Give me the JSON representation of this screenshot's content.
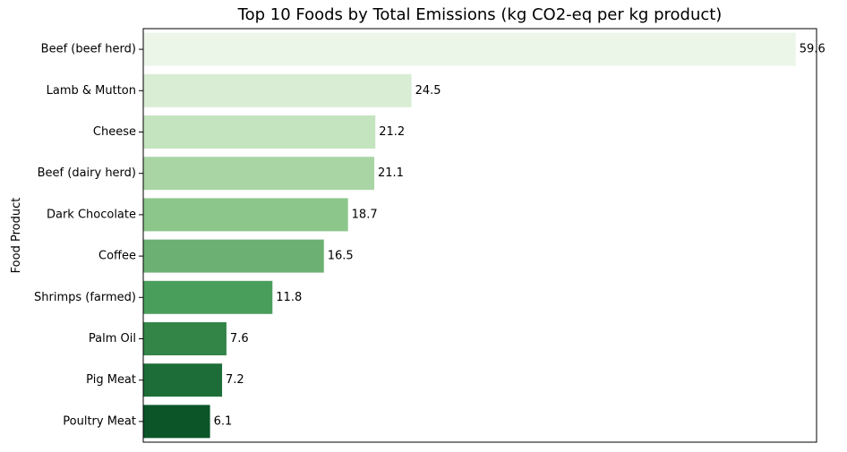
{
  "chart_data": {
    "type": "bar",
    "orientation": "horizontal",
    "title": "Top 10 Foods by Total Emissions (kg CO2-eq per kg product)",
    "xlabel": "",
    "ylabel": "Food Product",
    "xlim": [
      0,
      61.5
    ],
    "grid": false,
    "x_tick_labels_shown": false,
    "categories": [
      "Beef (beef herd)",
      "Lamb & Mutton",
      "Cheese",
      "Beef (dairy herd)",
      "Dark Chocolate",
      "Coffee",
      "Shrimps (farmed)",
      "Palm Oil",
      "Pig Meat",
      "Poultry Meat"
    ],
    "values": [
      59.6,
      24.5,
      21.2,
      21.1,
      18.7,
      16.5,
      11.8,
      7.6,
      7.2,
      6.1
    ],
    "value_labels": [
      "59.6",
      "24.5",
      "21.2",
      "21.1",
      "18.7",
      "16.5",
      "11.8",
      "7.6",
      "7.2",
      "6.1"
    ],
    "colors": [
      "#ebf6e8",
      "#d8edd3",
      "#c4e4bf",
      "#a9d5a4",
      "#8cc68b",
      "#6cb173",
      "#4a9e5c",
      "#338447",
      "#1d6d38",
      "#0b5528"
    ]
  }
}
